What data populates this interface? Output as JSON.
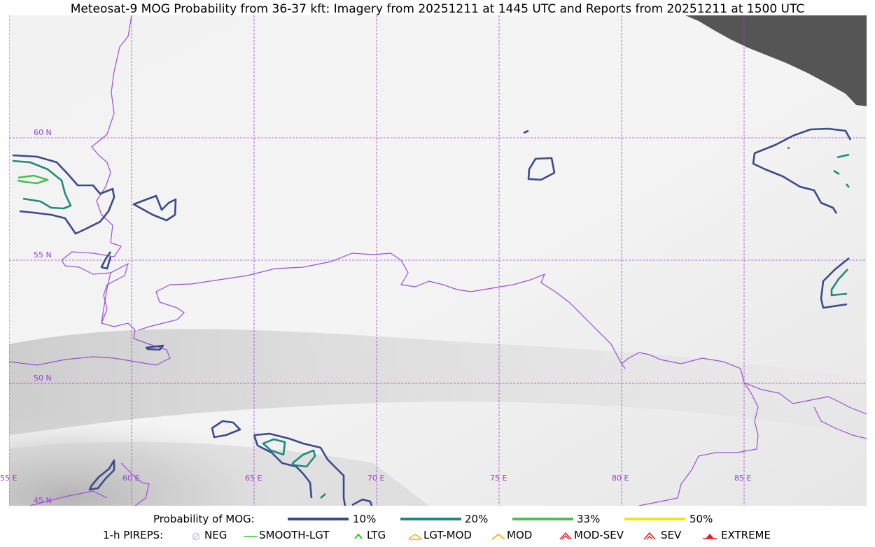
{
  "title": "Meteosat-9 MOG Probability from 36-37 kft: Imagery from 20251211 at 1445 UTC and Reports from 20251211 at 1500 UTC",
  "grid": {
    "latitudes": [
      "60 N",
      "55 N",
      "50 N",
      "45 N"
    ],
    "longitudes": [
      "55 E",
      "60 E",
      "65 E",
      "70 E",
      "75 E",
      "80 E",
      "85 E"
    ]
  },
  "legend": {
    "probability_label": "Probability of MOG:",
    "probability_levels": [
      {
        "label": "10%",
        "color": "#3b4a8a"
      },
      {
        "label": "20%",
        "color": "#1e8a7e"
      },
      {
        "label": "33%",
        "color": "#4cc052"
      },
      {
        "label": "50%",
        "color": "#f2e21a"
      }
    ],
    "pireps_label": "1-h PIREPS:",
    "pireps": [
      {
        "label": "NEG",
        "icon": "neg-icon",
        "color": "#c8c8f0"
      },
      {
        "label": "SMOOTH-LGT",
        "icon": "smooth-lgt-icon",
        "color": "#33cc33"
      },
      {
        "label": "LTG",
        "icon": "ltg-icon",
        "color": "#22cc22"
      },
      {
        "label": "LGT-MOD",
        "icon": "lgt-mod-icon",
        "color": "#f5b21a"
      },
      {
        "label": "MOD",
        "icon": "mod-icon",
        "color": "#f5b21a"
      },
      {
        "label": "MOD-SEV",
        "icon": "mod-sev-icon",
        "color": "#e02020"
      },
      {
        "label": "SEV",
        "icon": "sev-icon",
        "color": "#e02020"
      },
      {
        "label": "EXTREME",
        "icon": "extreme-icon",
        "color": "#e02020"
      }
    ]
  },
  "colors": {
    "boundary": "#9a4fd8",
    "gridline": "#9a3fd6",
    "no_data": "#555555"
  }
}
